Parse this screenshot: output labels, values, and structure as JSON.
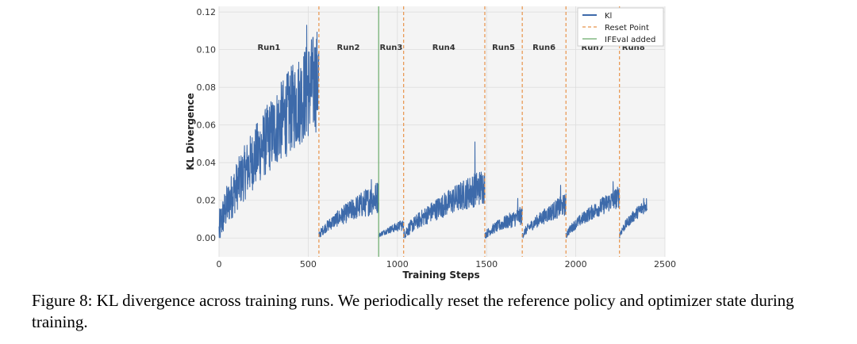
{
  "chart_data": {
    "type": "line",
    "xlabel": "Training Steps",
    "ylabel": "KL Divergence",
    "xlim": [
      0,
      2500
    ],
    "ylim": [
      -0.01,
      0.123
    ],
    "xticks": [
      0,
      500,
      1000,
      1500,
      2000,
      2500
    ],
    "yticks": [
      0.0,
      0.02,
      0.04,
      0.06,
      0.08,
      0.1,
      0.12
    ],
    "ytick_labels": [
      "0.00",
      "0.02",
      "0.04",
      "0.06",
      "0.08",
      "0.10",
      "0.12"
    ],
    "grid": true,
    "legend_position": "top-right",
    "legend": [
      {
        "label": "Kl",
        "style": "solid",
        "color": "#3d6aaa"
      },
      {
        "label": "Reset Point",
        "style": "dashed",
        "color": "#e8934a"
      },
      {
        "label": "IFEval added",
        "style": "solid",
        "color": "#6aaa6a"
      }
    ],
    "series": [
      {
        "name": "Kl",
        "color": "#3d6aaa",
        "segments": [
          {
            "run": "Run1",
            "x_start": 0,
            "x_end": 560,
            "y_start": 0.003,
            "y_end": 0.085,
            "noise_low": 0.01,
            "noise_high": 0.028,
            "peak": 0.113
          },
          {
            "run": "Run2",
            "x_start": 560,
            "x_end": 895,
            "y_start": 0.001,
            "y_end": 0.022,
            "noise_low": 0.002,
            "noise_high": 0.009,
            "peak": 0.031
          },
          {
            "run": "Run3",
            "x_start": 895,
            "x_end": 1035,
            "y_start": 0.001,
            "y_end": 0.007,
            "noise_low": 0.001,
            "noise_high": 0.003,
            "peak": 0.009
          },
          {
            "run": "Run4",
            "x_start": 1035,
            "x_end": 1490,
            "y_start": 0.001,
            "y_end": 0.028,
            "noise_low": 0.003,
            "noise_high": 0.01,
            "peak": 0.051
          },
          {
            "run": "Run5",
            "x_start": 1490,
            "x_end": 1700,
            "y_start": 0.001,
            "y_end": 0.012,
            "noise_low": 0.002,
            "noise_high": 0.005,
            "peak": 0.021
          },
          {
            "run": "Run6",
            "x_start": 1700,
            "x_end": 1945,
            "y_start": 0.001,
            "y_end": 0.018,
            "noise_low": 0.002,
            "noise_high": 0.006,
            "peak": 0.028
          },
          {
            "run": "Run7",
            "x_start": 1945,
            "x_end": 2245,
            "y_start": 0.001,
            "y_end": 0.022,
            "noise_low": 0.002,
            "noise_high": 0.006,
            "peak": 0.03
          },
          {
            "run": "Run8",
            "x_start": 2245,
            "x_end": 2400,
            "y_start": 0.001,
            "y_end": 0.018,
            "noise_low": 0.002,
            "noise_high": 0.004,
            "peak": 0.021
          }
        ]
      }
    ],
    "reset_points": [
      560,
      1035,
      1490,
      1700,
      1945,
      2245
    ],
    "ifeval_added": 895,
    "runs": [
      {
        "label": "Run1",
        "x": 280
      },
      {
        "label": "Run2",
        "x": 725
      },
      {
        "label": "Run3",
        "x": 965
      },
      {
        "label": "Run4",
        "x": 1260
      },
      {
        "label": "Run5",
        "x": 1595
      },
      {
        "label": "Run6",
        "x": 1822
      },
      {
        "label": "Run7",
        "x": 2095
      },
      {
        "label": "Run8",
        "x": 2323
      }
    ]
  },
  "caption": "Figure 8: KL divergence across training runs. We periodically reset the reference policy and optimizer state during training."
}
